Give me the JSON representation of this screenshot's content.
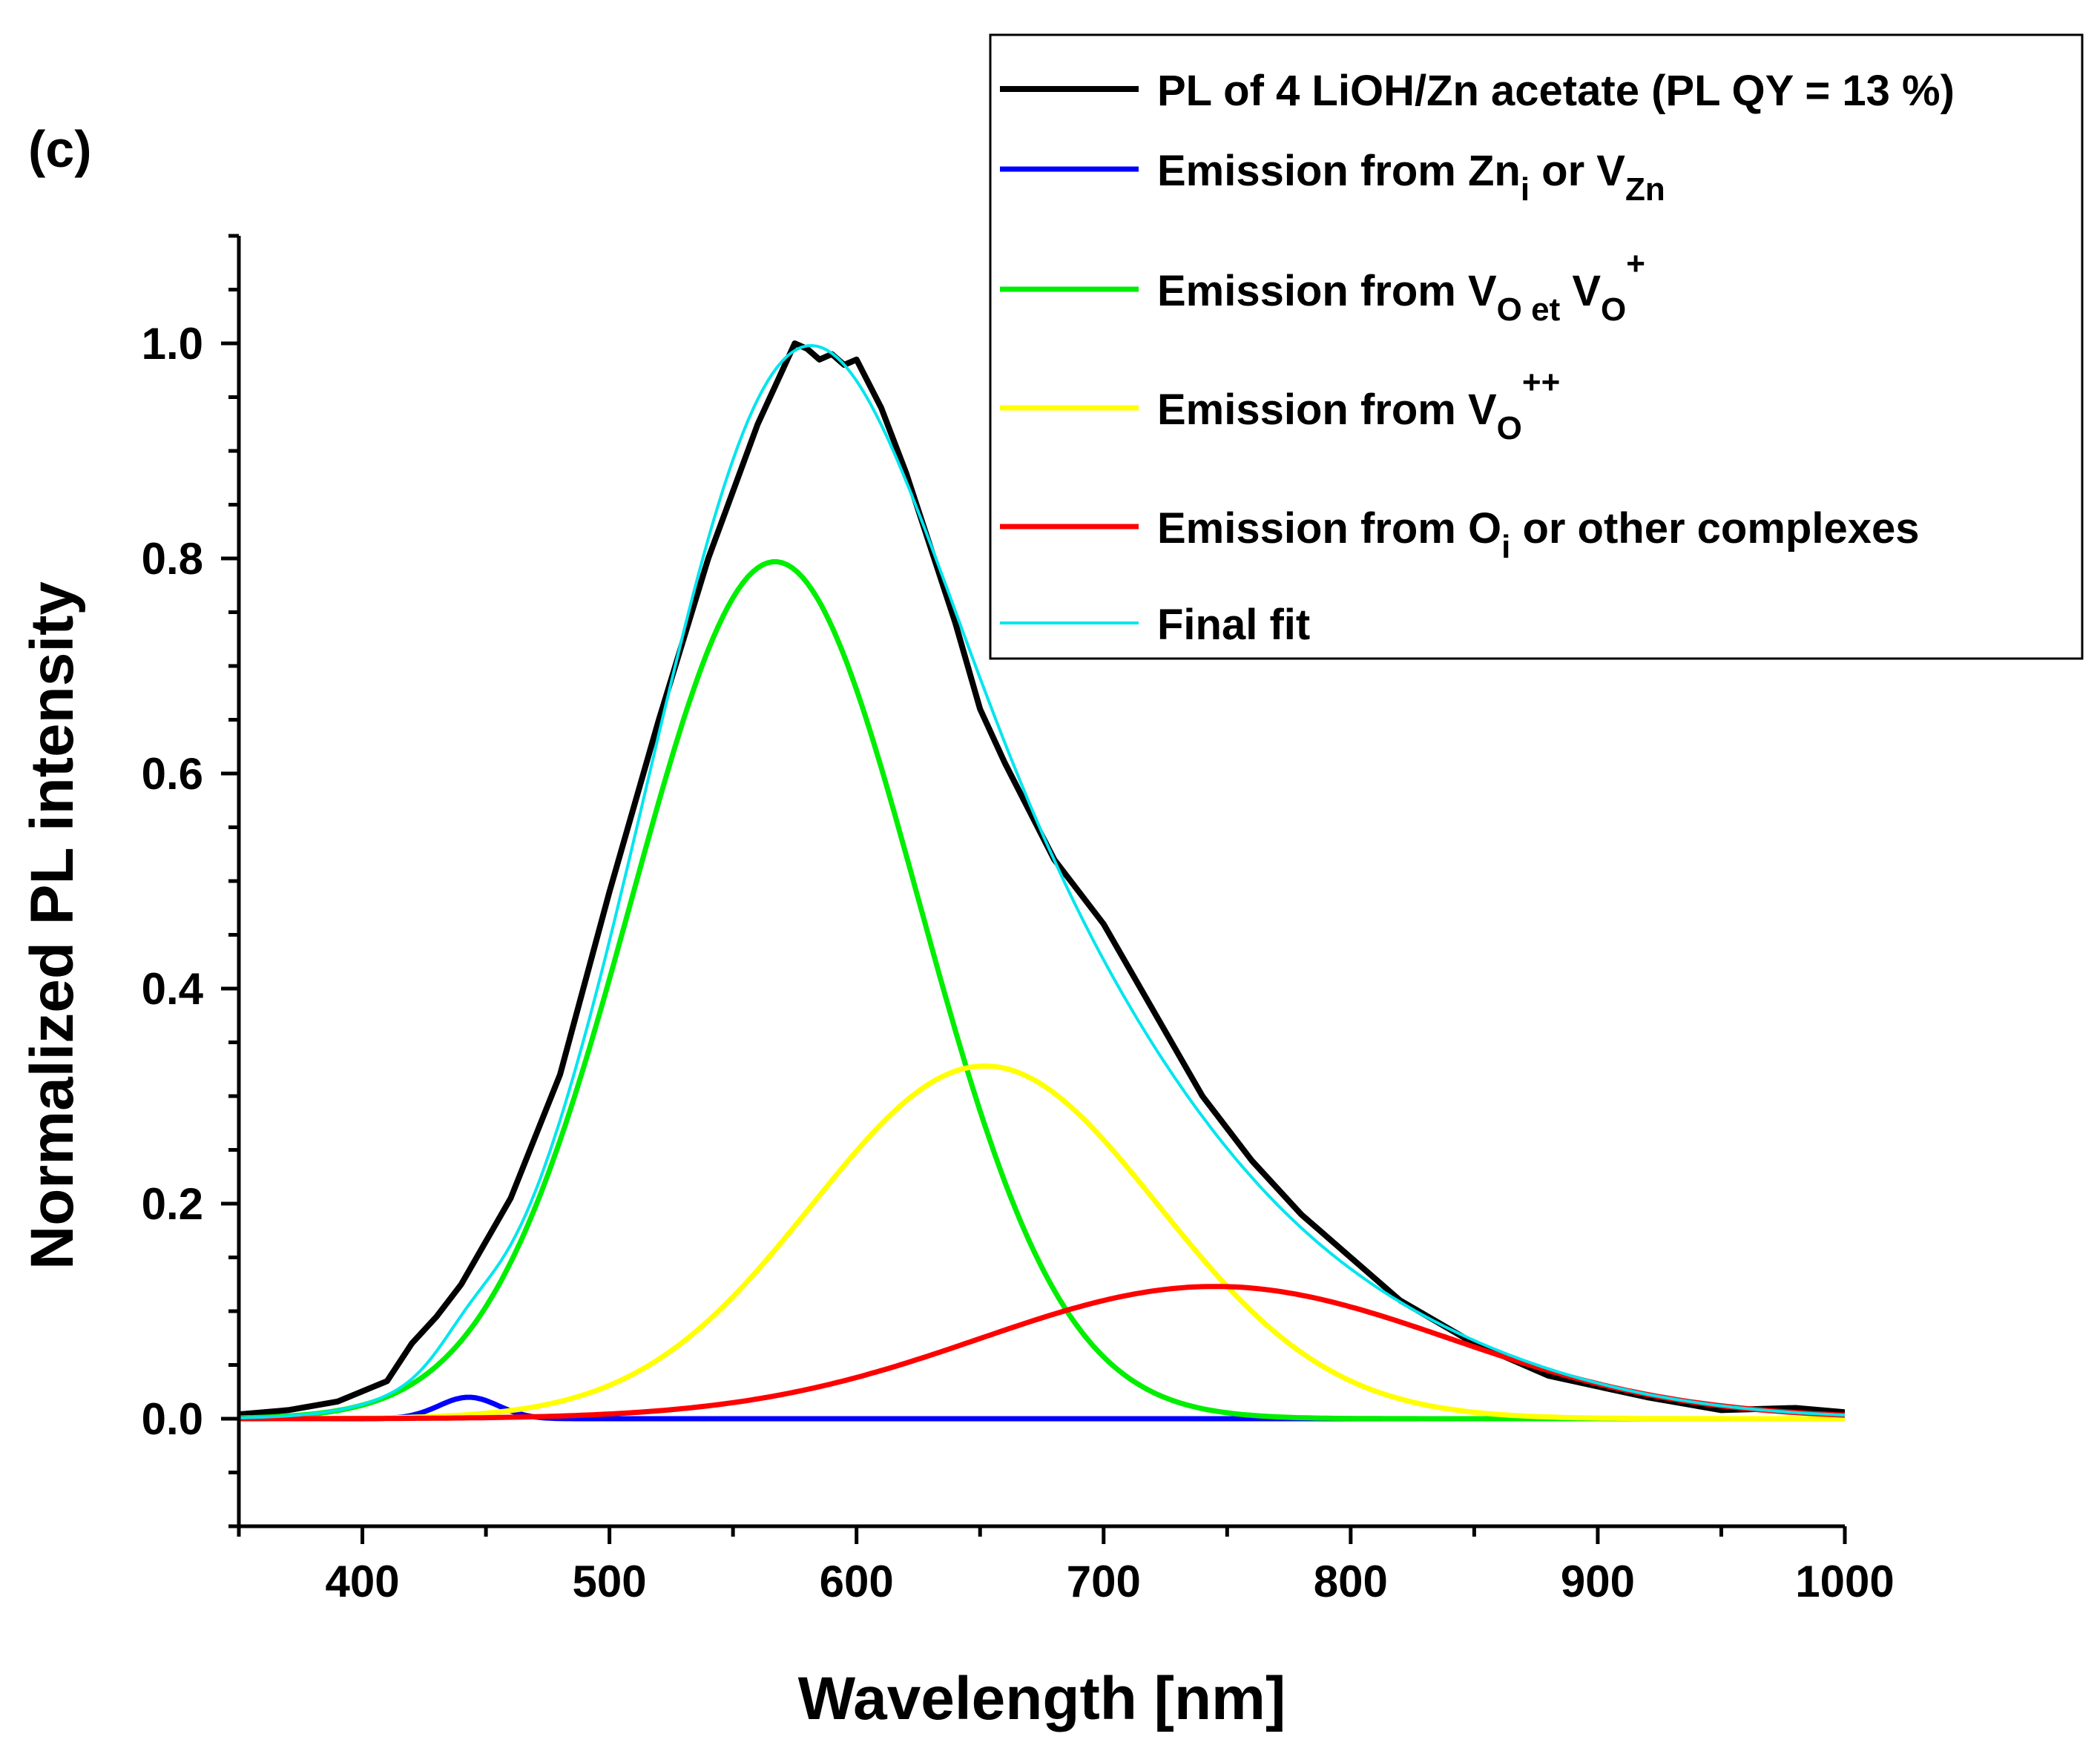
{
  "chart_data": {
    "type": "line",
    "panel_label": "(c)",
    "xlabel": "Wavelength [nm]",
    "ylabel": "Normalized PL intensity",
    "xlim": [
      350,
      1000
    ],
    "ylim": [
      -0.1,
      1.1
    ],
    "x_ticks": [
      400,
      500,
      600,
      700,
      800,
      900,
      1000
    ],
    "x_tick_labels": [
      "400",
      "500",
      "600",
      "700",
      "800",
      "900",
      "1000"
    ],
    "y_ticks": [
      0.0,
      0.2,
      0.4,
      0.6,
      0.8,
      1.0
    ],
    "y_tick_labels": [
      "0.0",
      "0.2",
      "0.4",
      "0.6",
      "0.8",
      "1.0"
    ],
    "grid": false,
    "legend_position": "top-right",
    "series": [
      {
        "name": "PL of 4 LiOH/Zn acetate (PL QY = 13 %)",
        "legend_text": "PL of 4 LiOH/Zn acetate (PL QY = 13 %)",
        "color": "#000000",
        "kind": "measured",
        "x": [
          350,
          370,
          390,
          410,
          420,
          430,
          440,
          450,
          460,
          480,
          500,
          520,
          540,
          560,
          570,
          575,
          580,
          585,
          590,
          595,
          600,
          610,
          620,
          640,
          650,
          660,
          680,
          700,
          720,
          740,
          760,
          780,
          800,
          820,
          850,
          880,
          900,
          920,
          950,
          980,
          1000
        ],
        "y": [
          0.004,
          0.008,
          0.016,
          0.035,
          0.07,
          0.095,
          0.125,
          0.165,
          0.205,
          0.32,
          0.49,
          0.65,
          0.8,
          0.925,
          0.975,
          1.0,
          0.995,
          0.985,
          0.99,
          0.98,
          0.985,
          0.94,
          0.88,
          0.74,
          0.66,
          0.61,
          0.52,
          0.46,
          0.38,
          0.3,
          0.24,
          0.19,
          0.15,
          0.11,
          0.07,
          0.04,
          0.03,
          0.02,
          0.008,
          0.01,
          0.006
        ]
      },
      {
        "name": "Emission from Zn_i or V_Zn",
        "legend_text": {
          "pre": "Emission from Zn",
          "sub1": "i",
          "mid": " or V",
          "sub2": "Zn"
        },
        "color": "#0000ff",
        "kind": "gaussian",
        "center": 443,
        "amplitude": 0.02,
        "sigma": 12
      },
      {
        "name": "Emission from V_O et V_O^+",
        "legend_text": {
          "pre": "Emission from V",
          "sub1": "O et",
          "mid": " V",
          "sub2": "O",
          "sup": "+"
        },
        "color": "#00ee00",
        "kind": "gaussian",
        "center": 567,
        "amplitude": 0.797,
        "sigma": 58
      },
      {
        "name": "Emission from V_O^++",
        "legend_text": {
          "pre": "Emission from V",
          "sub1": "O",
          "sup": "++"
        },
        "color": "#ffff00",
        "kind": "gaussian",
        "center": 652,
        "amplitude": 0.328,
        "sigma": 70
      },
      {
        "name": "Emission from O_i or other complexes",
        "legend_text": {
          "pre": "Emission from O",
          "sub1": "i",
          "mid": " or other complexes"
        },
        "color": "#ff0000",
        "kind": "gaussian",
        "center": 745,
        "amplitude": 0.123,
        "sigma": 95
      },
      {
        "name": "Final fit",
        "legend_text": "Final fit",
        "color": "#00e5ee",
        "kind": "sum_of_components"
      }
    ]
  }
}
